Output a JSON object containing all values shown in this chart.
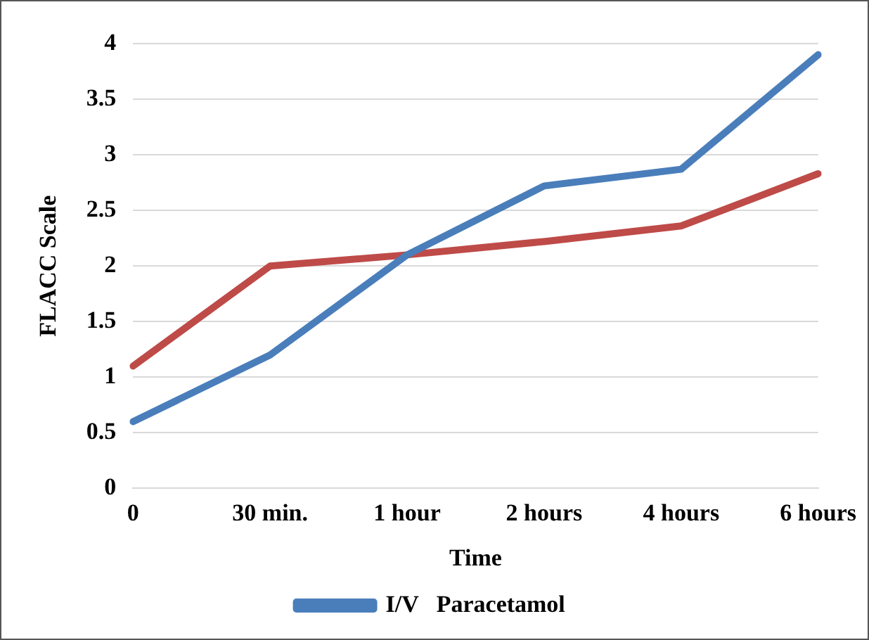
{
  "chart_data": {
    "type": "line",
    "xlabel": "Time",
    "ylabel": "FLACC Scale",
    "categories": [
      "0",
      "30 min.",
      "1 hour",
      "2 hours",
      "4 hours",
      "6 hours"
    ],
    "series": [
      {
        "name": "I/V   Paracetamol",
        "color": "#4a7ebb",
        "values": [
          0.6,
          1.2,
          2.1,
          2.72,
          2.87,
          3.9
        ]
      },
      {
        "color": "#be4b48",
        "values": [
          1.1,
          2.0,
          2.1,
          2.22,
          2.36,
          2.83
        ]
      }
    ],
    "ylim": [
      0,
      4
    ],
    "yticks": [
      0,
      0.5,
      1,
      1.5,
      2,
      2.5,
      3,
      3.5,
      4
    ],
    "grid": "y",
    "legend": "bottom",
    "marker": "none",
    "line_style": "solid"
  }
}
